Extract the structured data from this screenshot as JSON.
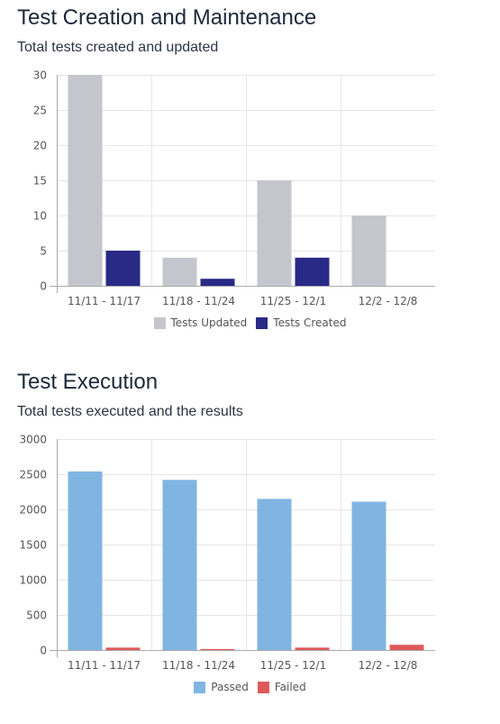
{
  "chart_data": [
    {
      "type": "bar",
      "title": "Test Creation and Maintenance",
      "subtitle": "Total tests created and updated",
      "categories": [
        "11/11 - 11/17",
        "11/18 - 11/24",
        "11/25 - 12/1",
        "12/2 - 12/8"
      ],
      "series": [
        {
          "name": "Tests Updated",
          "color": "#c5c6cd",
          "values": [
            30,
            4,
            15,
            10
          ]
        },
        {
          "name": "Tests Created",
          "color": "#292a86",
          "values": [
            5,
            1,
            4,
            0
          ]
        }
      ],
      "ylim": [
        0,
        30
      ],
      "yticks": [
        "0",
        "5",
        "10",
        "15",
        "20",
        "25",
        "30"
      ],
      "grid": true,
      "legend_position": "bottom-center"
    },
    {
      "type": "bar",
      "title": "Test Execution",
      "subtitle": "Total tests executed and the results",
      "categories": [
        "11/11 - 11/17",
        "11/18 - 11/24",
        "11/25 - 12/1",
        "12/2 - 12/8"
      ],
      "series": [
        {
          "name": "Passed",
          "color": "#80b5e2",
          "values": [
            2540,
            2420,
            2150,
            2110
          ]
        },
        {
          "name": "Failed",
          "color": "#df5b5b",
          "values": [
            35,
            15,
            35,
            75
          ]
        }
      ],
      "ylim": [
        0,
        3000
      ],
      "yticks": [
        "0",
        "500",
        "1000",
        "1500",
        "2000",
        "2500",
        "3000"
      ],
      "grid": true,
      "legend_position": "bottom-center"
    }
  ]
}
